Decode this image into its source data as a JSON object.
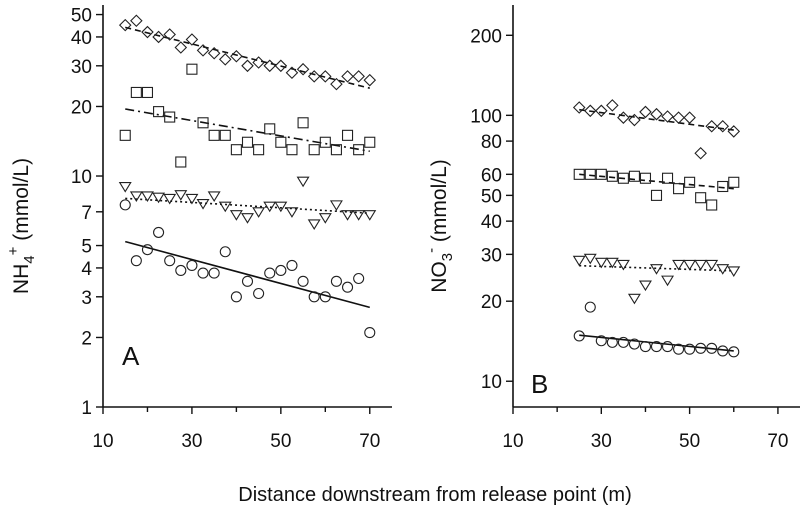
{
  "xlabel": "Distance downstream from release point (m)",
  "chart_data": [
    {
      "type": "scatter",
      "panel_label": "A",
      "ylabel_main": "NH",
      "ylabel_sub": "4",
      "ylabel_sup": "+",
      "ylabel_unit": " (mmol/L)",
      "y_scale": "log",
      "xlim": [
        10,
        75
      ],
      "ylim": [
        1,
        55
      ],
      "x_ticks": [
        10,
        30,
        50,
        70
      ],
      "x_ticks_minor": [
        20,
        40,
        60
      ],
      "y_ticks": [
        1,
        2,
        3,
        4,
        5,
        7,
        10,
        20,
        30,
        40,
        50
      ],
      "series": [
        {
          "marker": "diamond",
          "line": "dashed",
          "x": [
            15,
            17.5,
            20,
            22.5,
            25,
            27.5,
            30,
            32.5,
            35,
            37.5,
            40,
            42.5,
            45,
            47.5,
            50,
            52.5,
            55,
            57.5,
            60,
            62.5,
            65,
            67.5,
            70
          ],
          "y": [
            45,
            47,
            42,
            40,
            41,
            36,
            39,
            35,
            34,
            32,
            33,
            30,
            31,
            30,
            30,
            28,
            29,
            27,
            27,
            25,
            27,
            27,
            26
          ],
          "fit": [
            [
              15,
              44
            ],
            [
              70,
              24
            ]
          ]
        },
        {
          "marker": "square",
          "line": "dashdot",
          "x": [
            15,
            17.5,
            20,
            22.5,
            25,
            27.5,
            30,
            32.5,
            35,
            37.5,
            40,
            42.5,
            45,
            47.5,
            50,
            52.5,
            55,
            57.5,
            60,
            62.5,
            65,
            67.5,
            70
          ],
          "y": [
            15,
            23,
            23,
            19,
            18,
            11.5,
            29,
            17,
            15,
            15,
            13,
            14,
            13,
            16,
            14,
            13,
            17,
            13,
            14,
            13,
            15,
            13,
            14
          ],
          "fit": [
            [
              15,
              19.5
            ],
            [
              70,
              12.8
            ]
          ]
        },
        {
          "marker": "triangle",
          "line": "dotted",
          "x": [
            15,
            17.5,
            20,
            22.5,
            25,
            27.5,
            30,
            32.5,
            35,
            37.5,
            40,
            42.5,
            45,
            47.5,
            50,
            52.5,
            55,
            57.5,
            60,
            62.5,
            65,
            67.5,
            70
          ],
          "y": [
            9,
            8.2,
            8.2,
            8.1,
            8,
            8.3,
            8,
            7.6,
            8.2,
            7.4,
            6.8,
            6.6,
            7,
            7.4,
            7.4,
            7,
            9.5,
            6.2,
            6.6,
            7.5,
            6.8,
            6.8,
            6.8
          ],
          "fit": [
            [
              15,
              8.0
            ],
            [
              70,
              6.9
            ]
          ]
        },
        {
          "marker": "circle",
          "line": "solid",
          "x": [
            15,
            17.5,
            20,
            22.5,
            25,
            27.5,
            30,
            32.5,
            35,
            37.5,
            40,
            42.5,
            45,
            47.5,
            50,
            52.5,
            55,
            57.5,
            60,
            62.5,
            65,
            67.5,
            70
          ],
          "y": [
            7.5,
            4.3,
            4.8,
            5.7,
            4.3,
            3.9,
            4.1,
            3.8,
            3.8,
            4.7,
            3.0,
            3.5,
            3.1,
            3.8,
            3.9,
            4.1,
            3.5,
            3.0,
            3.0,
            3.5,
            3.3,
            3.6,
            2.1
          ],
          "fit": [
            [
              15,
              5.2
            ],
            [
              70,
              2.7
            ]
          ]
        }
      ]
    },
    {
      "type": "scatter",
      "panel_label": "B",
      "ylabel_main": "NO",
      "ylabel_sub": "3",
      "ylabel_sup": "-",
      "ylabel_unit": " (mmol/L)",
      "y_scale": "log",
      "xlim": [
        10,
        75
      ],
      "ylim": [
        8,
        260
      ],
      "x_ticks": [
        10,
        30,
        50,
        70
      ],
      "x_ticks_minor": [
        20,
        40,
        60
      ],
      "y_ticks": [
        10,
        20,
        30,
        40,
        50,
        60,
        80,
        100,
        200
      ],
      "series": [
        {
          "marker": "diamond",
          "line": "dashed",
          "x": [
            25,
            27.5,
            30,
            32.5,
            35,
            37.5,
            40,
            42.5,
            45,
            47.5,
            50,
            52.5,
            55,
            57.5,
            60
          ],
          "y": [
            107,
            104,
            104,
            109,
            98,
            96,
            103,
            101,
            99,
            98,
            98,
            72,
            91,
            91,
            87
          ],
          "fit": [
            [
              25,
              105
            ],
            [
              60,
              88
            ]
          ]
        },
        {
          "marker": "square",
          "line": "dashed",
          "x": [
            25,
            27.5,
            30,
            32.5,
            35,
            37.5,
            40,
            42.5,
            45,
            47.5,
            50,
            52.5,
            55,
            57.5,
            60
          ],
          "y": [
            60,
            60,
            60,
            59,
            58,
            59,
            58,
            50,
            58,
            53,
            56,
            49,
            46,
            54,
            56
          ],
          "fit": [
            [
              25,
              60
            ],
            [
              60,
              53
            ]
          ]
        },
        {
          "marker": "triangle",
          "line": "dotted",
          "x": [
            25,
            27.5,
            30,
            32.5,
            35,
            37.5,
            40,
            42.5,
            45,
            47.5,
            50,
            52.5,
            55,
            57.5,
            60
          ],
          "y": [
            28.5,
            29,
            28,
            28,
            27.5,
            20.5,
            23,
            26.5,
            24,
            27.5,
            27.5,
            27.5,
            27.5,
            26.5,
            26
          ],
          "fit": [
            [
              25,
              27.2
            ],
            [
              60,
              26
            ]
          ]
        },
        {
          "marker": "circle",
          "line": "solid",
          "x": [
            25,
            27.5,
            30,
            32.5,
            35,
            37.5,
            40,
            42.5,
            45,
            47.5,
            50,
            52.5,
            55,
            57.5,
            60
          ],
          "y": [
            14.8,
            19,
            14.2,
            14,
            14,
            13.8,
            13.5,
            13.5,
            13.5,
            13.2,
            13.2,
            13.3,
            13.3,
            13,
            12.9
          ],
          "fit": [
            [
              25,
              14.9
            ],
            [
              60,
              13
            ]
          ]
        }
      ]
    }
  ]
}
